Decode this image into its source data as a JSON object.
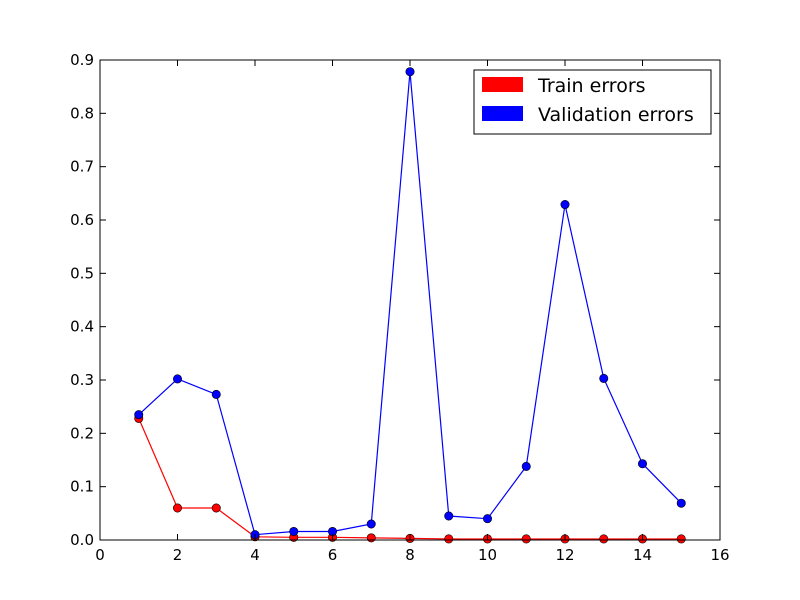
{
  "chart_data": {
    "type": "line",
    "title": "",
    "xlabel": "",
    "ylabel": "",
    "xlim": [
      0,
      16
    ],
    "ylim": [
      0,
      0.9
    ],
    "xticks": [
      0,
      2,
      4,
      6,
      8,
      10,
      12,
      14,
      16
    ],
    "yticks": [
      0.0,
      0.1,
      0.2,
      0.3,
      0.4,
      0.5,
      0.6,
      0.7,
      0.8,
      0.9
    ],
    "x": [
      1,
      2,
      3,
      4,
      5,
      6,
      7,
      8,
      9,
      10,
      11,
      12,
      13,
      14,
      15
    ],
    "series": [
      {
        "name": "Train errors",
        "color": "#ff0000",
        "values": [
          0.228,
          0.06,
          0.06,
          0.006,
          0.005,
          0.005,
          0.004,
          0.003,
          0.002,
          0.002,
          0.002,
          0.002,
          0.002,
          0.002,
          0.002
        ]
      },
      {
        "name": "Validation errors",
        "color": "#0000ff",
        "values": [
          0.235,
          0.302,
          0.273,
          0.01,
          0.016,
          0.016,
          0.03,
          0.878,
          0.045,
          0.04,
          0.138,
          0.629,
          0.303,
          0.143,
          0.069
        ]
      }
    ],
    "grid": false,
    "legend": "top-right"
  }
}
